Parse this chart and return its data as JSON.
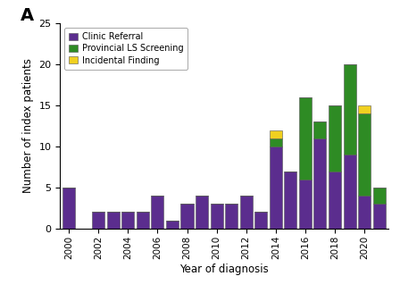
{
  "years": [
    2000,
    2001,
    2002,
    2003,
    2004,
    2005,
    2006,
    2007,
    2008,
    2009,
    2010,
    2011,
    2012,
    2013,
    2014,
    2015,
    2016,
    2017,
    2018,
    2019,
    2020,
    2021
  ],
  "clinic_referral": [
    5,
    0,
    2,
    2,
    2,
    2,
    4,
    1,
    3,
    4,
    3,
    3,
    4,
    2,
    10,
    7,
    6,
    11,
    7,
    9,
    4,
    3
  ],
  "provincial_screening": [
    0,
    0,
    0,
    0,
    0,
    0,
    0,
    0,
    0,
    0,
    0,
    0,
    0,
    0,
    1,
    0,
    10,
    2,
    8,
    11,
    10,
    2
  ],
  "incidental_finding": [
    0,
    0,
    0,
    0,
    0,
    0,
    0,
    0,
    0,
    0,
    0,
    0,
    0,
    0,
    1,
    0,
    0,
    0,
    0,
    0,
    1,
    0
  ],
  "color_cr": "#5b2d8e",
  "color_ps": "#2e8b24",
  "color_if": "#f0d020",
  "title_label": "A",
  "xlabel": "Year of diagnosis",
  "ylabel": "Number of index patients",
  "ylim": [
    0,
    25
  ],
  "yticks": [
    0,
    5,
    10,
    15,
    20,
    25
  ],
  "legend_labels": [
    "Clinic Referral",
    "Provincial LS Screening",
    "Incidental Finding"
  ],
  "bar_width": 0.85,
  "figsize": [
    4.48,
    3.28
  ],
  "dpi": 100,
  "tick_years": [
    2000,
    2002,
    2004,
    2006,
    2008,
    2010,
    2012,
    2014,
    2016,
    2018,
    2020
  ],
  "xlim": [
    1999.4,
    2021.6
  ]
}
